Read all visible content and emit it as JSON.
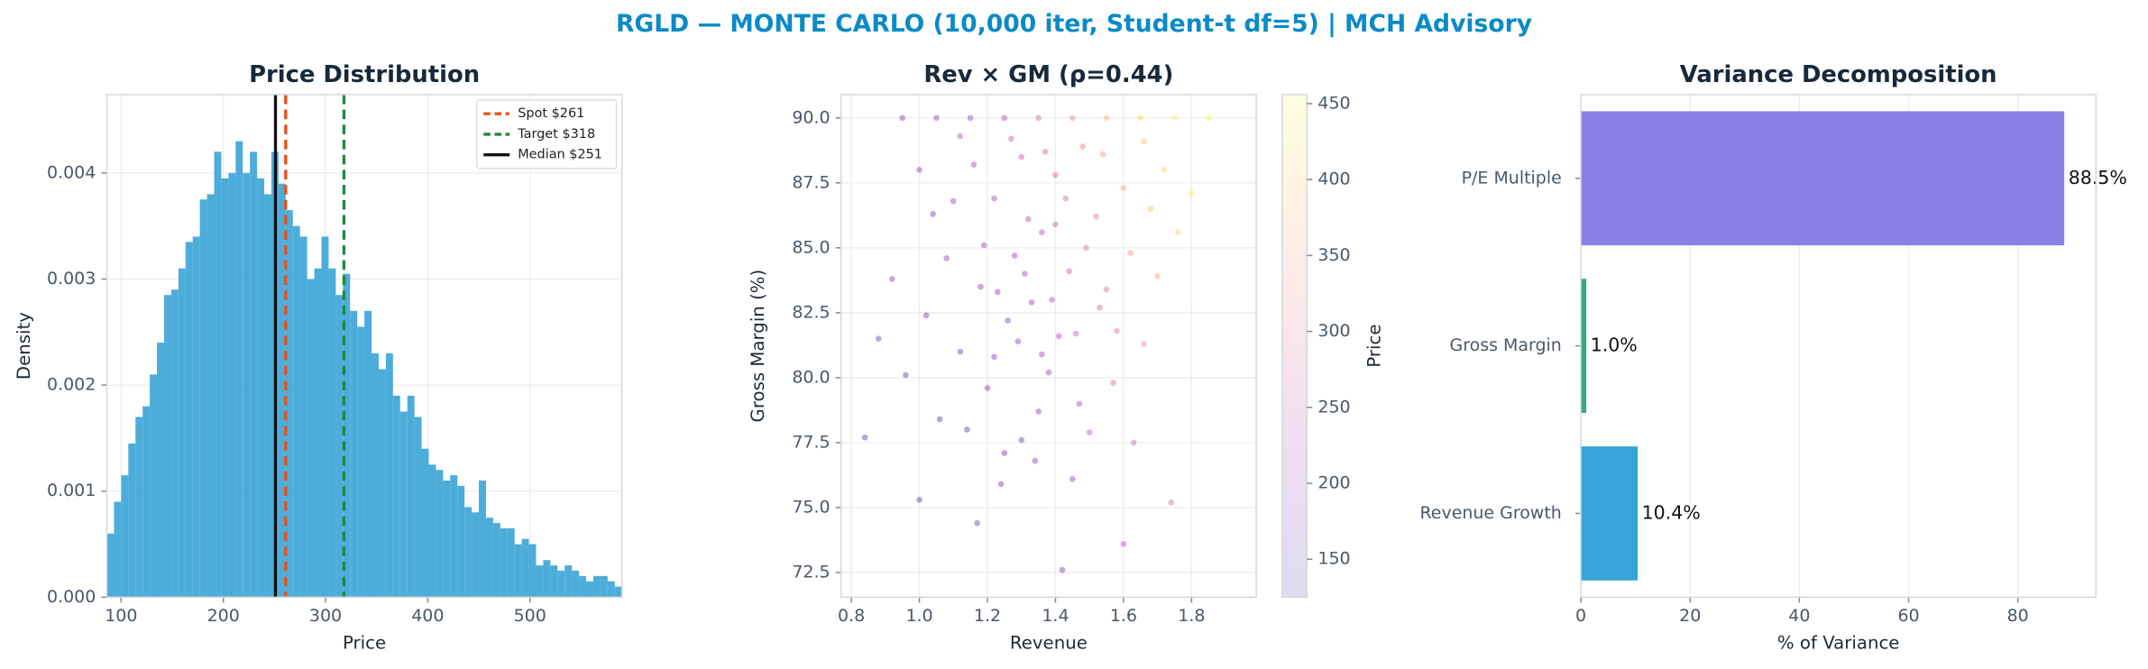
{
  "title": "RGLD — MONTE CARLO (10,000 iter, Student-t df=5) | MCH Advisory",
  "chart_data": [
    {
      "type": "histogram",
      "title": "Price Distribution",
      "x_label": "Price",
      "y_label": "Density",
      "color": "#3aa4d6",
      "bins": [
        86,
        93,
        100,
        107,
        114,
        121,
        128,
        135,
        142,
        149,
        156,
        163,
        170,
        177,
        184,
        191,
        198,
        205,
        212,
        219,
        226,
        233,
        240,
        247,
        254,
        261,
        268,
        275,
        282,
        289,
        296,
        303,
        310,
        317,
        324,
        331,
        338,
        345,
        352,
        359,
        366,
        373,
        380,
        387,
        394,
        401,
        408,
        415,
        422,
        429,
        436,
        443,
        450,
        457,
        464,
        471,
        478,
        485,
        492,
        499,
        506,
        513,
        520,
        527,
        534,
        541,
        548,
        555,
        562,
        569,
        576,
        583,
        590
      ],
      "values": [
        0.0006,
        0.0009,
        0.00115,
        0.00145,
        0.0017,
        0.0018,
        0.0021,
        0.0024,
        0.00285,
        0.0029,
        0.0031,
        0.00335,
        0.0034,
        0.00375,
        0.0038,
        0.0042,
        0.00395,
        0.004,
        0.0043,
        0.004,
        0.0042,
        0.00395,
        0.0038,
        0.0042,
        0.0039,
        0.00365,
        0.0035,
        0.0034,
        0.003,
        0.0031,
        0.0034,
        0.0031,
        0.00285,
        0.00305,
        0.0027,
        0.00255,
        0.0027,
        0.0023,
        0.00215,
        0.0023,
        0.0019,
        0.00175,
        0.0019,
        0.0017,
        0.0014,
        0.00125,
        0.0012,
        0.0011,
        0.00115,
        0.00105,
        0.00085,
        0.0008,
        0.0011,
        0.00075,
        0.0007,
        0.00065,
        0.00065,
        0.0005,
        0.00055,
        0.0005,
        0.0003,
        0.00035,
        0.0003,
        0.00025,
        0.0003,
        0.00025,
        0.0002,
        0.00015,
        0.0002,
        0.0002,
        0.00015,
        0.0001
      ],
      "xlim": [
        86,
        590
      ],
      "xticks": [
        100,
        200,
        300,
        400,
        500
      ],
      "ylim": [
        0,
        0.00474
      ],
      "yticks": [
        {
          "value": 0,
          "label": "0.000"
        },
        {
          "value": 0.001,
          "label": "0.001"
        },
        {
          "value": 0.002,
          "label": "0.002"
        },
        {
          "value": 0.003,
          "label": "0.003"
        },
        {
          "value": 0.004,
          "label": "0.004"
        }
      ],
      "vlines": [
        {
          "name": "Spot $261",
          "value": 261,
          "color": "#e8501a",
          "dashed": true
        },
        {
          "name": "Target $318",
          "value": 318,
          "color": "#1f8a3c",
          "dashed": true
        },
        {
          "name": "Median $251",
          "value": 251,
          "color": "#111111",
          "dashed": false
        }
      ],
      "grid": true,
      "legend": "upper right"
    },
    {
      "type": "scatter",
      "title": "Rev × GM (ρ=0.44)",
      "x_label": "Revenue",
      "y_label": "Gross Margin (%)",
      "colorbar_label": "Price",
      "colormap": "plasma",
      "x": [
        1.25,
        1.35,
        1.45,
        1.55,
        1.65,
        1.75,
        1.15,
        1.05,
        0.95,
        1.85,
        1.3,
        1.4,
        1.22,
        1.48,
        1.36,
        1.28,
        1.44,
        1.18,
        1.52,
        1.6,
        1.33,
        1.26,
        1.41,
        1.12,
        1.55,
        1.38,
        1.2,
        1.47,
        1.06,
        1.3,
        1.62,
        1.68,
        1.72,
        1.58,
        1.5,
        1.34,
        1.24,
        1.42,
        0.84,
        1.0,
        0.96,
        1.02,
        1.08,
        1.1,
        1.16,
        1.0,
        0.92,
        0.88,
        1.14,
        1.22,
        1.32,
        1.37,
        1.43,
        1.49,
        1.53,
        1.57,
        1.63,
        1.66,
        1.7,
        1.76,
        1.8,
        1.27,
        1.19,
        1.29,
        1.39,
        1.46,
        1.35,
        1.25,
        1.45,
        1.6,
        1.74,
        1.17,
        1.04,
        1.12,
        1.54,
        1.66,
        1.4,
        1.31,
        1.23,
        1.36
      ],
      "values": [
        90,
        90,
        90,
        90,
        90,
        90,
        90,
        90,
        90,
        90,
        88.5,
        87.8,
        86.9,
        88.9,
        85.6,
        84.7,
        84.1,
        83.5,
        86.2,
        87.3,
        82.9,
        82.2,
        81.6,
        81.0,
        83.4,
        80.2,
        79.6,
        79.0,
        78.4,
        77.6,
        84.8,
        86.5,
        88.0,
        81.8,
        77.9,
        76.8,
        75.9,
        72.6,
        77.7,
        75.3,
        80.1,
        82.4,
        84.6,
        86.8,
        88.2,
        88.0,
        83.8,
        81.5,
        78.0,
        80.8,
        86.1,
        88.7,
        86.9,
        85.0,
        82.7,
        79.8,
        77.5,
        81.3,
        83.9,
        85.6,
        87.1,
        89.2,
        85.1,
        81.4,
        83.0,
        81.7,
        78.7,
        77.1,
        76.1,
        73.6,
        75.2,
        74.4,
        86.3,
        89.3,
        88.6,
        89.1,
        85.9,
        84.0,
        83.3,
        80.9
      ],
      "color_values": [
        240,
        280,
        330,
        380,
        420,
        440,
        220,
        200,
        180,
        450,
        250,
        270,
        220,
        320,
        240,
        210,
        260,
        180,
        300,
        360,
        210,
        190,
        230,
        160,
        290,
        200,
        170,
        230,
        150,
        175,
        340,
        390,
        420,
        300,
        240,
        190,
        170,
        160,
        140,
        140,
        150,
        165,
        185,
        205,
        225,
        200,
        170,
        155,
        150,
        180,
        235,
        275,
        275,
        285,
        280,
        275,
        270,
        320,
        365,
        410,
        440,
        250,
        200,
        195,
        235,
        255,
        195,
        165,
        205,
        230,
        280,
        145,
        185,
        230,
        345,
        400,
        255,
        220,
        200,
        210
      ],
      "xlim": [
        0.77,
        1.99
      ],
      "xticks": [
        0.8,
        {
          "value": 1,
          "label": "1.0"
        },
        1.2,
        1.4,
        1.6,
        1.8
      ],
      "ylim": [
        71.55,
        90.9
      ],
      "yticks": [
        {
          "value": 72.5,
          "label": "72.5"
        },
        {
          "value": 75,
          "label": "75.0"
        },
        77.5,
        {
          "value": 80,
          "label": "80.0"
        },
        82.5,
        {
          "value": 85,
          "label": "85.0"
        },
        87.5,
        {
          "value": 90,
          "label": "90.0"
        }
      ],
      "clim": [
        125,
        456
      ],
      "cticks": [
        150,
        200,
        250,
        300,
        350,
        400,
        450
      ],
      "grid": true
    },
    {
      "type": "barh",
      "title": "Variance Decomposition",
      "x_label": "% of Variance",
      "categories": [
        "P/E Multiple",
        "Gross Margin",
        "Revenue Growth"
      ],
      "values": [
        88.5,
        1.0,
        10.4
      ],
      "value_labels": [
        "88.5%",
        "1.0%",
        "10.4%"
      ],
      "colors": [
        "#8a7fe8",
        "#3aa87a",
        "#36a4d6"
      ],
      "xlim": [
        0,
        94.3
      ],
      "xticks": [
        0,
        20,
        40,
        60,
        80
      ],
      "grid": true
    }
  ]
}
